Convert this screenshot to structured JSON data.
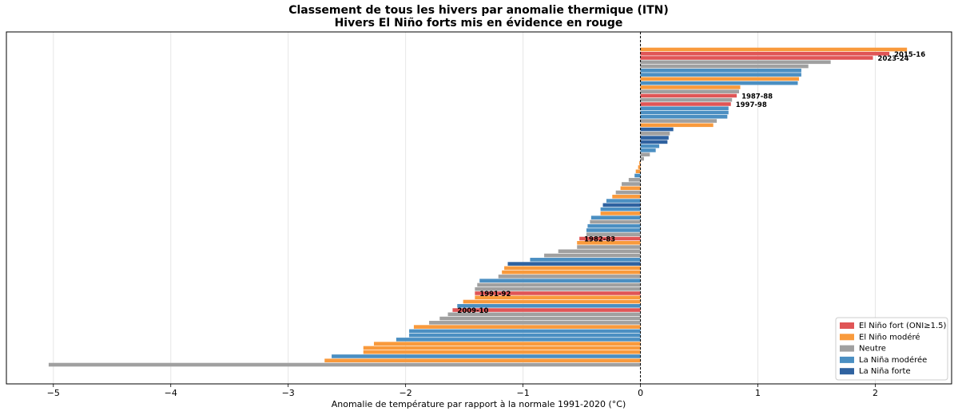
{
  "chart_data": {
    "type": "barh",
    "title": "Classement de tous les hivers par anomalie thermique (ITN)",
    "subtitle": "Hivers El Niño forts mis en évidence en rouge",
    "x_label": "Anomalie de température par rapport à la normale 1991-2020 (°C)",
    "xlim": [
      -5.4,
      2.65
    ],
    "xticks": [
      {
        "value": -5,
        "label": "−5"
      },
      {
        "value": -4,
        "label": "−4"
      },
      {
        "value": -3,
        "label": "−3"
      },
      {
        "value": -2,
        "label": "−2"
      },
      {
        "value": -1,
        "label": "−1"
      },
      0,
      1,
      2
    ],
    "grid": true,
    "legend": "lower right",
    "categories": [
      null,
      "2015-16",
      "2023-24",
      null,
      null,
      null,
      null,
      null,
      null,
      null,
      null,
      "1987-88",
      null,
      "1997-98",
      null,
      null,
      null,
      null,
      null,
      null,
      null,
      null,
      null,
      null,
      null,
      null,
      null,
      null,
      null,
      null,
      null,
      null,
      null,
      null,
      null,
      null,
      null,
      null,
      null,
      null,
      null,
      null,
      null,
      null,
      null,
      "1982-83",
      null,
      null,
      null,
      null,
      null,
      null,
      null,
      null,
      null,
      null,
      null,
      null,
      "1991-92",
      null,
      null,
      null,
      "2009-10",
      null,
      null,
      null,
      null,
      null,
      null,
      null,
      null,
      null,
      null,
      null,
      null,
      null
    ],
    "series": [
      {
        "name": "El Niño fort (ONI≥1.5)",
        "color": "#e05556",
        "label_color": "#d62728",
        "values": [
          null,
          2.12,
          1.98,
          null,
          null,
          null,
          null,
          null,
          null,
          null,
          null,
          0.82,
          null,
          0.77,
          null,
          null,
          null,
          null,
          null,
          null,
          null,
          null,
          null,
          null,
          null,
          null,
          null,
          null,
          null,
          null,
          null,
          null,
          null,
          null,
          null,
          null,
          null,
          null,
          null,
          null,
          null,
          null,
          null,
          null,
          null,
          -0.52,
          null,
          null,
          null,
          null,
          null,
          null,
          null,
          null,
          null,
          null,
          null,
          null,
          -1.41,
          null,
          null,
          null,
          -1.6,
          null,
          null,
          null,
          null,
          null,
          null,
          null,
          null,
          null,
          null,
          null,
          null,
          null
        ]
      },
      {
        "name": "El Niño modéré",
        "color": "#f99a3c",
        "values": [
          2.27,
          null,
          null,
          null,
          null,
          null,
          null,
          1.35,
          null,
          0.85,
          null,
          null,
          null,
          null,
          null,
          null,
          null,
          null,
          0.62,
          null,
          null,
          null,
          null,
          null,
          null,
          null,
          null,
          -0.01,
          -0.02,
          -0.04,
          null,
          null,
          null,
          -0.17,
          null,
          -0.24,
          null,
          null,
          null,
          -0.34,
          null,
          null,
          null,
          null,
          null,
          null,
          -0.54,
          null,
          null,
          null,
          null,
          null,
          -1.16,
          -1.18,
          null,
          null,
          null,
          null,
          null,
          -1.41,
          -1.51,
          null,
          null,
          null,
          null,
          null,
          -1.93,
          null,
          null,
          null,
          -2.27,
          -2.36,
          -2.36,
          null,
          -2.69,
          null
        ]
      },
      {
        "name": "Neutre",
        "color": "#a0a0a0",
        "values": [
          null,
          null,
          null,
          1.62,
          1.43,
          null,
          null,
          null,
          null,
          null,
          0.84,
          null,
          0.78,
          null,
          null,
          null,
          null,
          0.65,
          null,
          null,
          0.25,
          null,
          null,
          null,
          null,
          0.08,
          0.03,
          null,
          null,
          null,
          null,
          -0.1,
          -0.16,
          null,
          -0.21,
          null,
          null,
          null,
          null,
          null,
          null,
          -0.43,
          null,
          null,
          -0.46,
          null,
          null,
          -0.54,
          -0.7,
          -0.82,
          null,
          null,
          null,
          null,
          -1.21,
          null,
          -1.39,
          -1.41,
          null,
          null,
          null,
          null,
          null,
          -1.64,
          -1.71,
          -1.8,
          null,
          null,
          null,
          null,
          null,
          null,
          null,
          null,
          null,
          -5.04
        ]
      },
      {
        "name": "La Niña modérée",
        "color": "#4b8fc2",
        "values": [
          null,
          null,
          null,
          null,
          null,
          1.37,
          1.37,
          null,
          1.34,
          null,
          null,
          null,
          null,
          null,
          0.75,
          0.75,
          0.74,
          null,
          null,
          null,
          null,
          null,
          null,
          0.16,
          0.13,
          null,
          null,
          null,
          null,
          null,
          -0.05,
          null,
          null,
          null,
          null,
          null,
          -0.29,
          null,
          -0.34,
          null,
          -0.42,
          null,
          -0.45,
          -0.46,
          null,
          null,
          null,
          null,
          null,
          null,
          -0.94,
          null,
          null,
          null,
          null,
          -1.37,
          null,
          null,
          null,
          null,
          null,
          -1.56,
          null,
          null,
          null,
          null,
          null,
          -1.97,
          -1.97,
          -2.08,
          null,
          null,
          null,
          -2.63,
          null,
          null
        ]
      },
      {
        "name": "La Niña forte",
        "color": "#2f62a0",
        "values": [
          null,
          null,
          null,
          null,
          null,
          null,
          null,
          null,
          null,
          null,
          null,
          null,
          null,
          null,
          null,
          null,
          null,
          null,
          null,
          0.28,
          null,
          0.24,
          0.23,
          null,
          null,
          null,
          null,
          null,
          null,
          null,
          null,
          null,
          null,
          null,
          null,
          null,
          null,
          -0.32,
          null,
          null,
          null,
          null,
          null,
          null,
          null,
          null,
          null,
          null,
          null,
          null,
          null,
          -1.13,
          null,
          null,
          null,
          null,
          null,
          null,
          null,
          null,
          null,
          null,
          null,
          null,
          null,
          null,
          null,
          null,
          null,
          null,
          null,
          null,
          null,
          null,
          null,
          null
        ]
      }
    ]
  }
}
